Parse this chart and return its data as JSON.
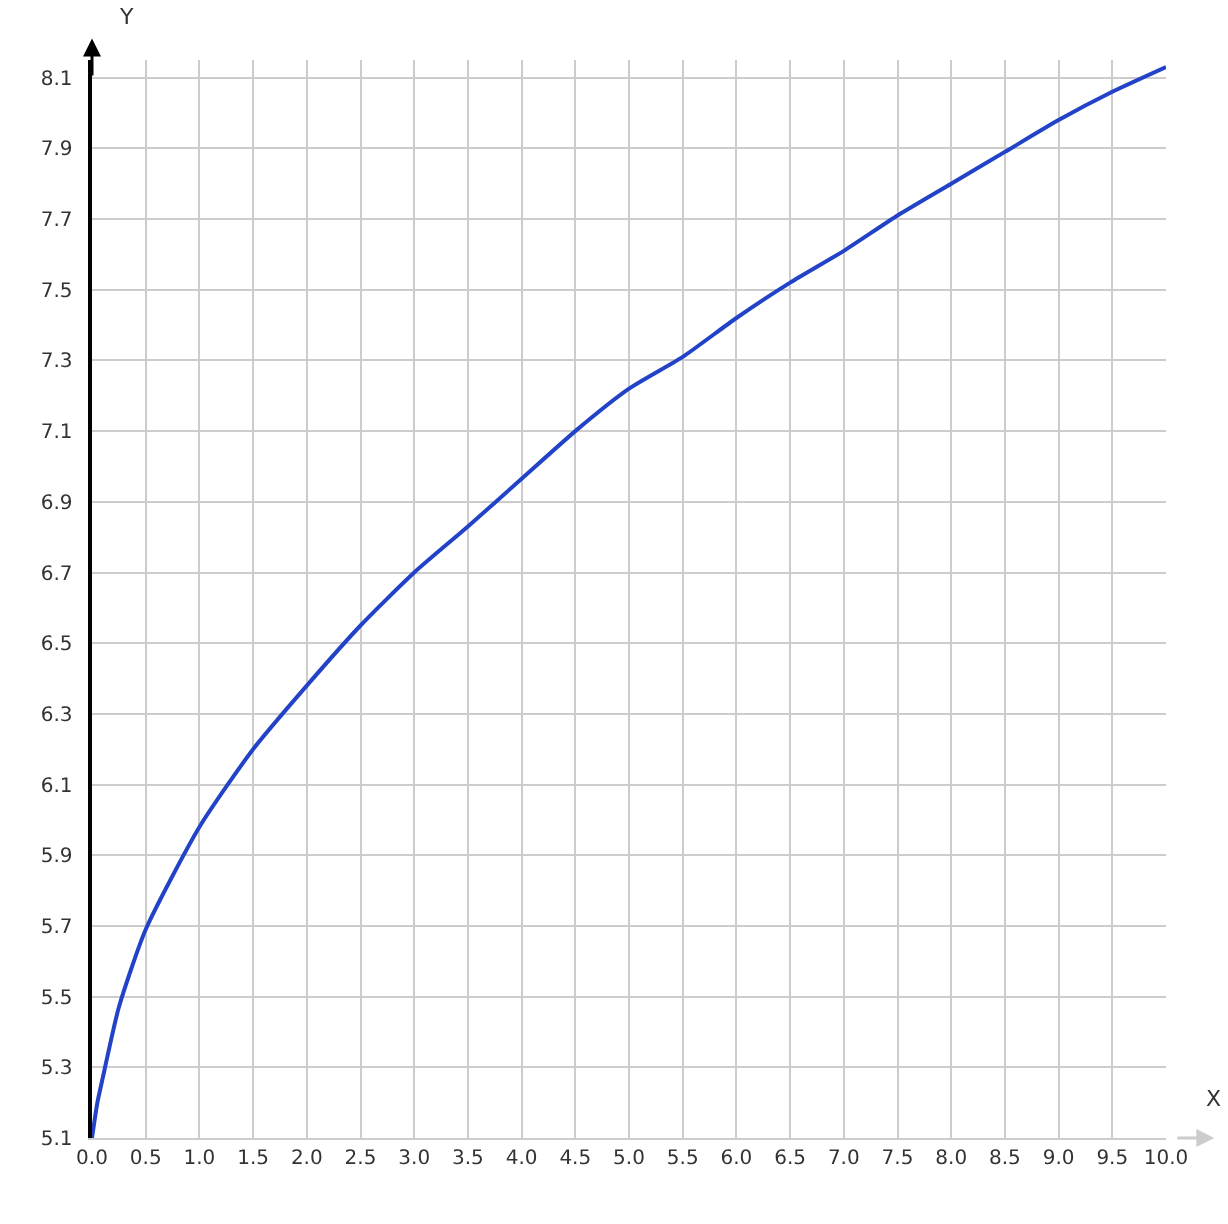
{
  "chart_data": {
    "type": "line",
    "xlabel": "X",
    "ylabel": "Y",
    "x": [
      0,
      0.05,
      0.1,
      0.25,
      0.5,
      1,
      1.5,
      2,
      2.5,
      3,
      3.5,
      4,
      4.5,
      5,
      5.5,
      6,
      6.5,
      7,
      7.5,
      8,
      8.5,
      9,
      9.5,
      10
    ],
    "series": [
      {
        "color": "#2243c8",
        "values": [
          5.1,
          5.2,
          5.27,
          5.47,
          5.69,
          5.98,
          6.2,
          6.38,
          6.55,
          6.7,
          6.83,
          6.965,
          7.1,
          7.22,
          7.31,
          7.42,
          7.52,
          7.61,
          7.71,
          7.8,
          7.89,
          7.98,
          8.06,
          8.13
        ]
      }
    ],
    "xlim": [
      0,
      10
    ],
    "ylim": [
      5.1,
      8.15
    ],
    "xticks": [
      {
        "value": 0,
        "label": "0.0"
      },
      0.5,
      {
        "value": 1,
        "label": "1.0"
      },
      1.5,
      {
        "value": 2,
        "label": "2.0"
      },
      2.5,
      {
        "value": 3,
        "label": "3.0"
      },
      3.5,
      {
        "value": 4,
        "label": "4.0"
      },
      4.5,
      {
        "value": 5,
        "label": "5.0"
      },
      5.5,
      {
        "value": 6,
        "label": "6.0"
      },
      6.5,
      {
        "value": 7,
        "label": "7.0"
      },
      7.5,
      {
        "value": 8,
        "label": "8.0"
      },
      8.5,
      {
        "value": 9,
        "label": "9.0"
      },
      9.5,
      {
        "value": 10,
        "label": "10.0"
      }
    ],
    "yticks": [
      5.1,
      5.3,
      5.5,
      5.7,
      5.9,
      6.1,
      6.3,
      6.5,
      6.7,
      6.9,
      7.1,
      7.3,
      7.5,
      7.7,
      7.9,
      8.1
    ],
    "grid": true,
    "marker": "none",
    "line_style": "solid"
  }
}
